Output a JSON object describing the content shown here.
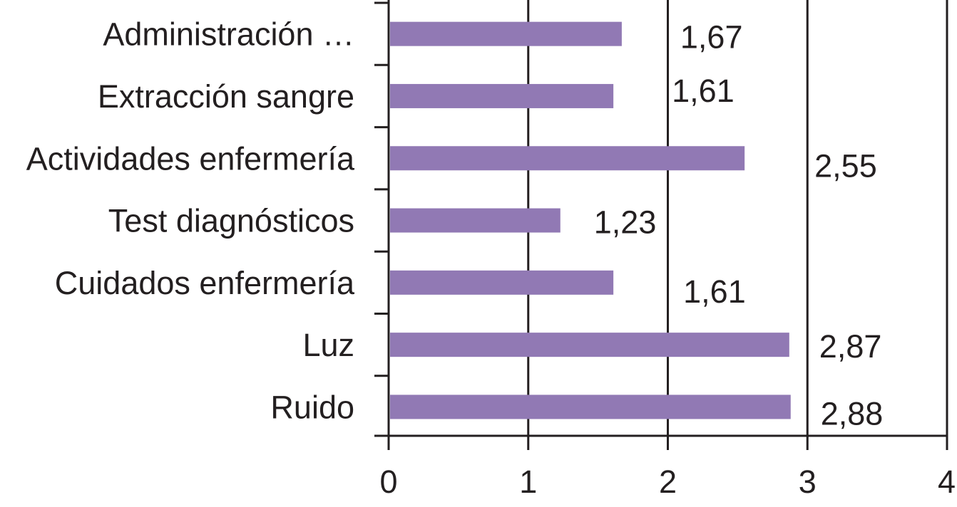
{
  "chart_data": {
    "type": "bar",
    "orientation": "horizontal",
    "categories": [
      "Administración …",
      "Extracción sangre",
      "Actividades enfermería",
      "Test diagnósticos",
      "Cuidados enfermería",
      "Luz",
      "Ruido"
    ],
    "values": [
      1.67,
      1.61,
      2.55,
      1.23,
      1.61,
      2.87,
      2.88
    ],
    "value_labels": [
      "1,67",
      "1,61",
      "2,55",
      "1,23",
      "1,61",
      "2,87",
      "2,88"
    ],
    "x_ticks": [
      0,
      1,
      2,
      3,
      4
    ],
    "x_tick_labels": [
      "0",
      "1",
      "2",
      "3",
      "4"
    ],
    "xlim": [
      0,
      4
    ],
    "grid": "vertical",
    "bar_color": "#9179b4",
    "text_color": "#231f20"
  }
}
